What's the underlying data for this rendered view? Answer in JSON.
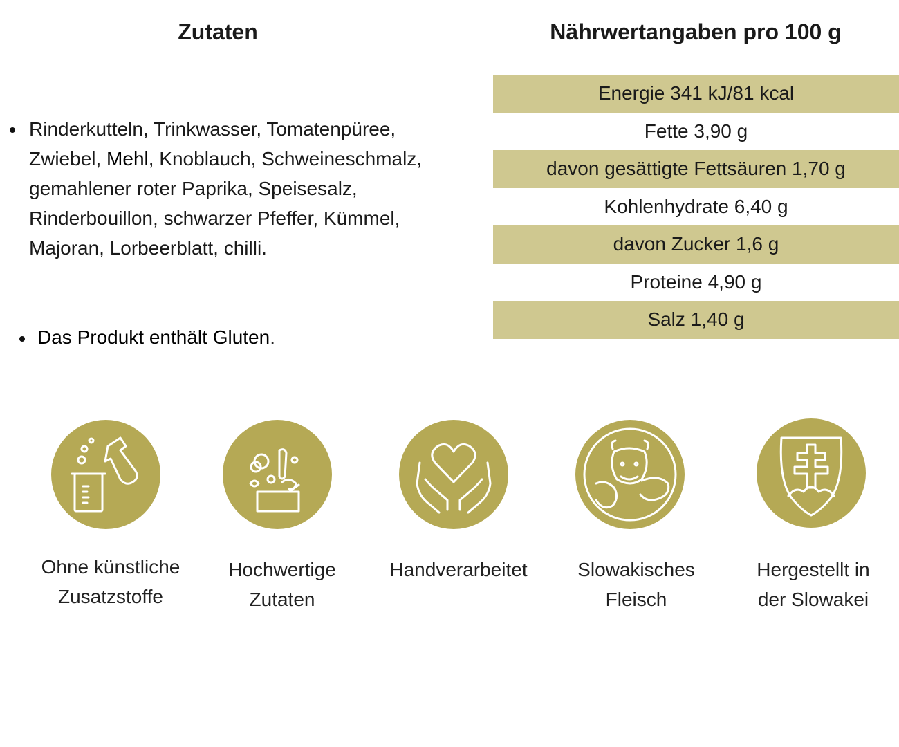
{
  "ingredients": {
    "heading": "Zutaten",
    "text_part1": "Rinderkutteln, Trinkwasser, Tomatenpüree, Zwiebel, ",
    "allergen": "Mehl",
    "text_part2": ", Knoblauch, Schweineschmalz, gemahlener roter Paprika, Speisesalz, Rinderbouillon, schwarzer Pfeffer, Kümmel, Majoran, Lorbeerblatt, chilli.",
    "gluten_note": "Das Produkt enthält Gluten",
    "gluten_period": "."
  },
  "nutrition": {
    "heading": "Nährwertangaben pro 100 g",
    "rows": [
      "Energie 341 kJ/81 kcal",
      "Fette 3,90 g",
      "davon gesättigte Fettsäuren 1,70 g",
      "Kohlenhydrate 6,40 g",
      "davon Zucker 1,6 g",
      "Proteine 4,90 g",
      "Salz 1,40 g"
    ]
  },
  "features": [
    {
      "icon": "lab-flask-icon",
      "label_line1": "Ohne künstliche",
      "label_line2": "Zusatzstoffe"
    },
    {
      "icon": "vegetables-box-icon",
      "label_line1": "Hochwertige",
      "label_line2": "Zutaten"
    },
    {
      "icon": "heart-hands-icon",
      "label_line1": "Handverarbeitet",
      "label_line2": ""
    },
    {
      "icon": "cow-pig-icon",
      "label_line1": "Slowakisches",
      "label_line2": "Fleisch"
    },
    {
      "icon": "slovak-coat-of-arms-icon",
      "label_line1": "Hergestellt in",
      "label_line2": "der Slowakei"
    }
  ],
  "colors": {
    "gold": "#b5a955",
    "row_shade": "#cfc890",
    "icon_stroke": "#ffffff"
  }
}
